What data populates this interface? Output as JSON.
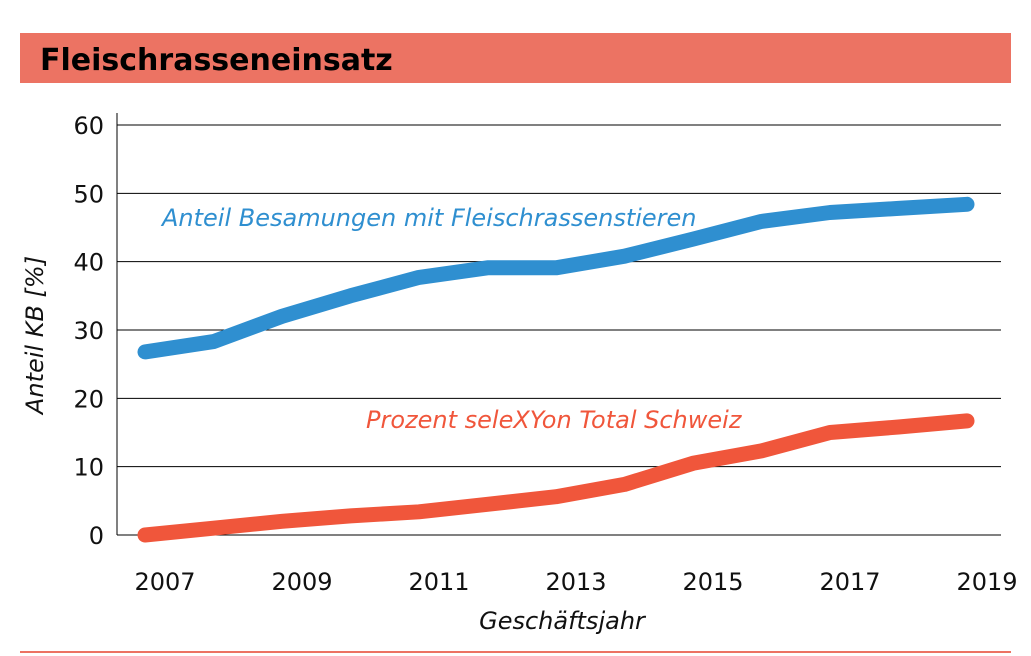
{
  "title": "Fleischrasseneinsatz",
  "colors": {
    "banner": "#ec7363",
    "grid": "#000000",
    "footer_line": "#ec7363"
  },
  "chart_data": {
    "type": "line",
    "title": "Fleischrasseneinsatz",
    "xlabel": "Geschäftsjahr",
    "ylabel": "Anteil KB [%]",
    "xlim": [
      2007,
      2019
    ],
    "ylim": [
      0,
      60
    ],
    "x_ticks": [
      "2007",
      "2009",
      "2011",
      "2013",
      "2015",
      "2017",
      "2019"
    ],
    "y_ticks": [
      "0",
      "10",
      "20",
      "30",
      "40",
      "50",
      "60"
    ],
    "grid": true,
    "series": [
      {
        "name": "Anteil Besamungen mit Fleischrassenstieren",
        "color": "#2f8fd0",
        "x": [
          2007,
          2008,
          2009,
          2010,
          2011,
          2012,
          2013,
          2014,
          2015,
          2016,
          2017,
          2018,
          2019
        ],
        "values": [
          26.8,
          28.3,
          32.0,
          35.0,
          37.7,
          39.1,
          39.1,
          40.8,
          43.3,
          45.9,
          47.2,
          47.8,
          48.4
        ]
      },
      {
        "name": "Prozent seleXYon Total Schweiz",
        "color": "#f0563b",
        "x": [
          2007,
          2008,
          2009,
          2010,
          2011,
          2012,
          2013,
          2014,
          2015,
          2016,
          2017,
          2018,
          2019
        ],
        "values": [
          0.0,
          1.0,
          2.0,
          2.8,
          3.4,
          4.5,
          5.6,
          7.4,
          10.5,
          12.3,
          15.0,
          15.8,
          16.7
        ]
      }
    ]
  }
}
